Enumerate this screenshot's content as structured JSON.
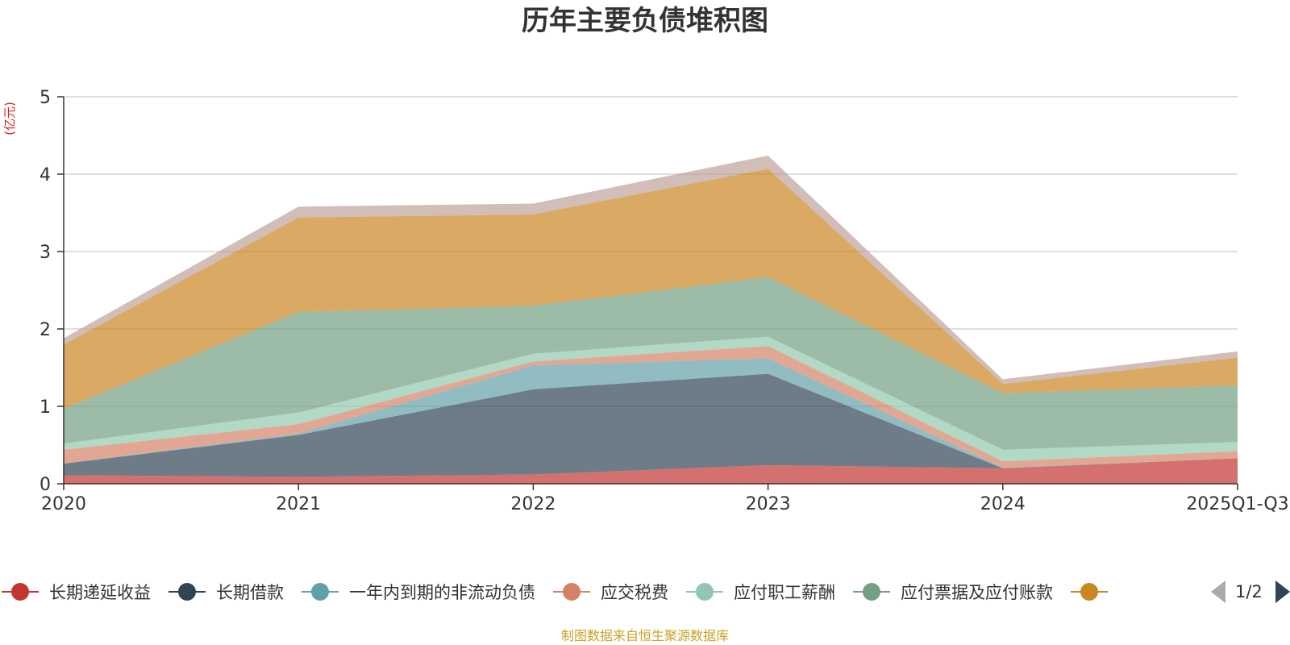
{
  "chart_data": {
    "type": "area",
    "stacked": true,
    "title": "历年主要负债堆积图",
    "unit_label": "(亿元)",
    "source_note": "制图数据来自恒生聚源数据库",
    "categories": [
      "2020",
      "2021",
      "2022",
      "2023",
      "2024",
      "2025Q1-Q3"
    ],
    "y_ticks": [
      "0",
      "1",
      "2",
      "3",
      "4",
      "5"
    ],
    "ylim": [
      0,
      5
    ],
    "grid": true,
    "legend_position": "bottom",
    "legend_page": "1/2",
    "series": [
      {
        "name": "长期递延收益",
        "color": "#c23531",
        "values": [
          0.11,
          0.09,
          0.12,
          0.24,
          0.2,
          0.33
        ]
      },
      {
        "name": "长期借款",
        "color": "#2f4554",
        "values": [
          0.15,
          0.54,
          1.1,
          1.18,
          0.0,
          0.0
        ]
      },
      {
        "name": "一年内到期的非流动负债",
        "color": "#61a0a8",
        "values": [
          0.0,
          0.02,
          0.31,
          0.2,
          0.01,
          0.0
        ]
      },
      {
        "name": "应交税费",
        "color": "#d48265",
        "values": [
          0.18,
          0.12,
          0.05,
          0.16,
          0.08,
          0.09
        ]
      },
      {
        "name": "应付职工薪酬",
        "color": "#91c7ae",
        "values": [
          0.08,
          0.15,
          0.1,
          0.12,
          0.15,
          0.12
        ]
      },
      {
        "name": "应付票据及应付账款",
        "color": "#749f83",
        "values": [
          0.45,
          1.3,
          0.62,
          0.77,
          0.73,
          0.73
        ]
      },
      {
        "name": "",
        "color": "#ca8622",
        "values": [
          0.83,
          1.22,
          1.18,
          1.4,
          0.12,
          0.36
        ]
      },
      {
        "name": "",
        "color": "#bda29a",
        "values": [
          0.08,
          0.14,
          0.14,
          0.17,
          0.06,
          0.08
        ]
      }
    ]
  }
}
